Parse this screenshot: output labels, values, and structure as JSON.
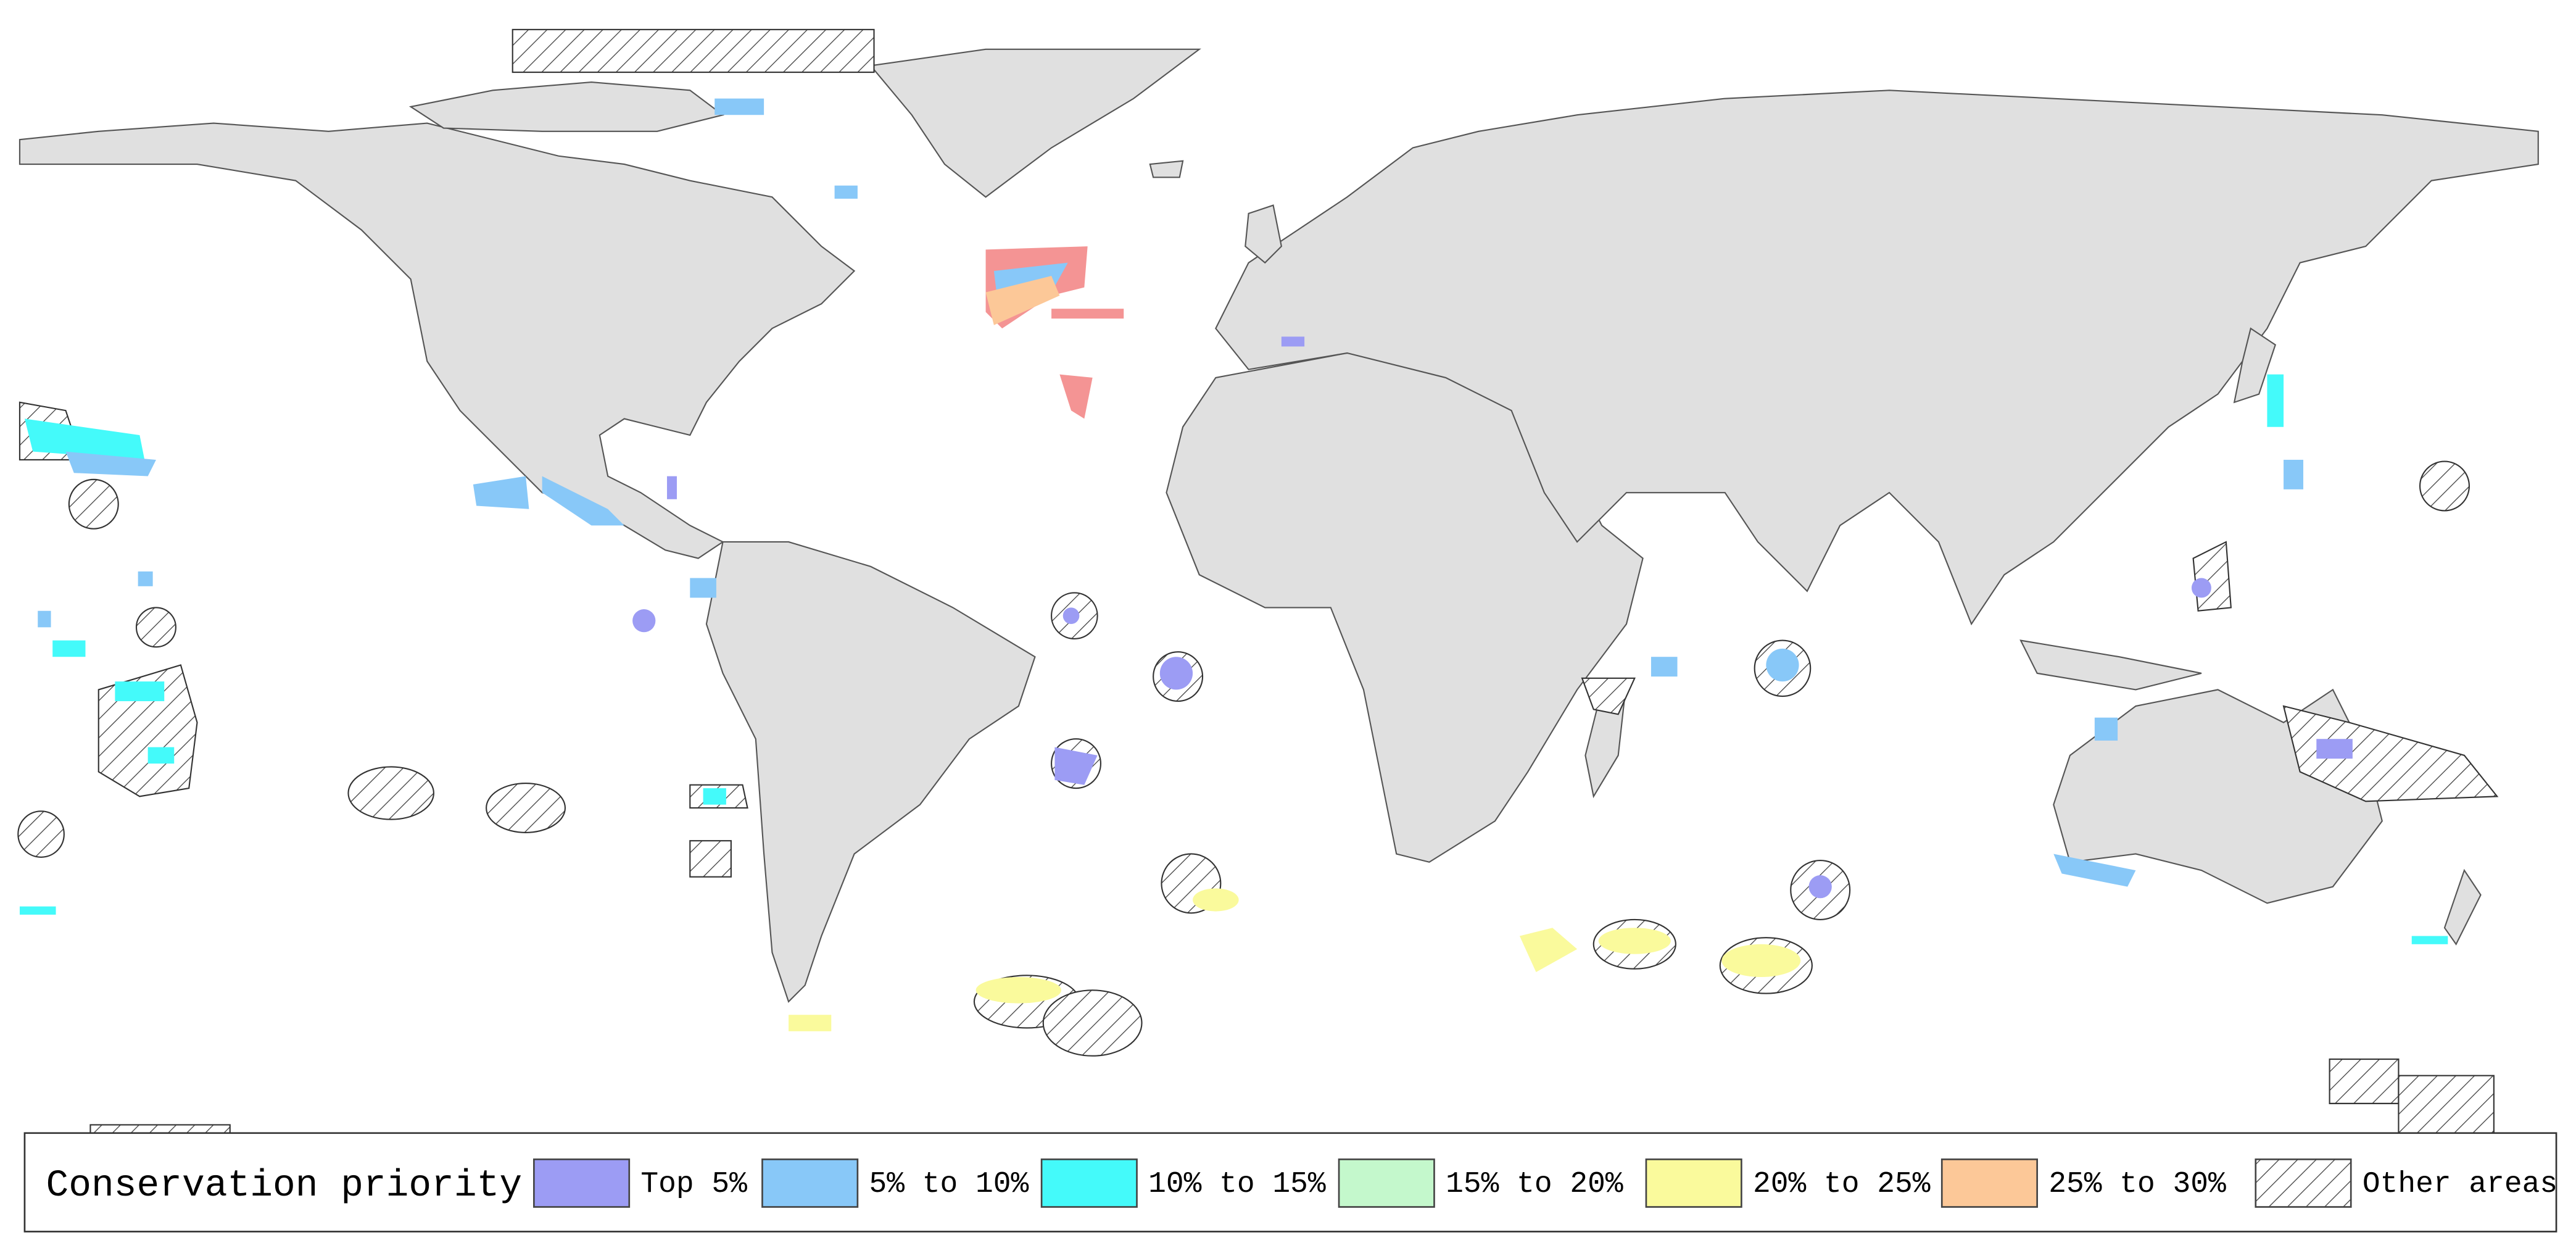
{
  "legend": {
    "title": "Conservation priority",
    "items": [
      {
        "label": "Top 5%",
        "color": "#9c9cf4"
      },
      {
        "label": "5% to 10%",
        "color": "#88c8f8"
      },
      {
        "label": "10% to 15%",
        "color": "#44fafa"
      },
      {
        "label": "15% to 20%",
        "color": "#c4f8cc"
      },
      {
        "label": "20% to 25%",
        "color": "#fafa9c"
      },
      {
        "label": "25% to 30%",
        "color": "#fcc898"
      },
      {
        "label": "Other areas"
      }
    ]
  }
}
